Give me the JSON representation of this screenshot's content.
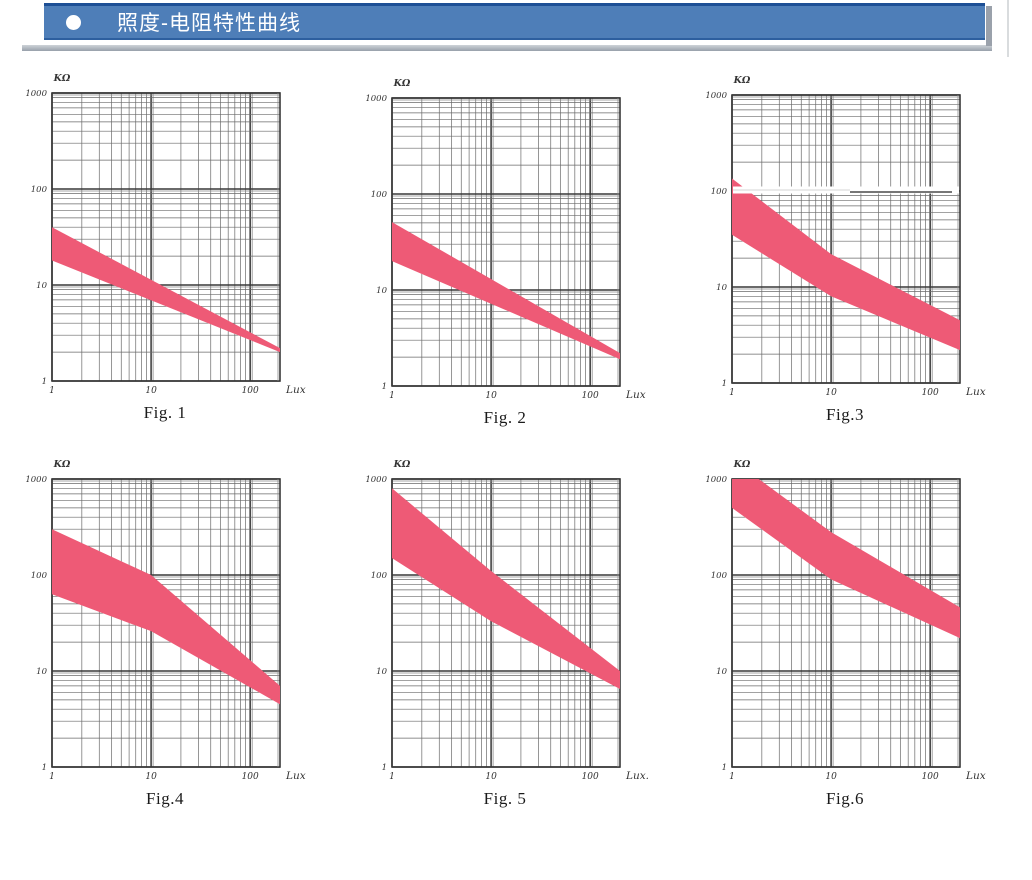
{
  "header": {
    "title": "照度-电阻特性曲线"
  },
  "colors": {
    "header_blue": "#4e7eb8",
    "header_border_top": "#1d4f95",
    "header_border_bottom": "#2d5f9f",
    "header_shadow": "#99a1ab",
    "band_pink": "#ee5a76",
    "grid_major": "#383838",
    "grid_minor": "#6a6a6a",
    "grid_echo": "#8a8a8a",
    "tick_text": "#333333"
  },
  "axes": {
    "scale": "log-log",
    "x_range": [
      1,
      200
    ],
    "y_range": [
      1,
      1000
    ],
    "x_ticks": [
      "1",
      "10",
      "100"
    ],
    "y_ticks": [
      "1000",
      "100",
      "10",
      "1"
    ],
    "y_unit": "KΩ",
    "x_unit": "Lux"
  },
  "chart_data": [
    {
      "id": "fig1",
      "type": "area",
      "caption": "Fig. 1",
      "y_unit": "KΩ",
      "x_unit": "Lux",
      "band": {
        "x": [
          1,
          200
        ],
        "upper": [
          40,
          2.2
        ],
        "lower": [
          18,
          2.0
        ]
      }
    },
    {
      "id": "fig2",
      "type": "area",
      "caption": "Fig. 2",
      "y_unit": "KΩ",
      "x_unit": "Lux",
      "band": {
        "x": [
          1,
          200
        ],
        "upper": [
          51,
          2.2
        ],
        "lower": [
          20,
          1.9
        ]
      }
    },
    {
      "id": "fig3",
      "type": "area",
      "caption": "Fig.3",
      "y_unit": "KΩ",
      "x_unit": "Lux",
      "white_gap_at": 100,
      "band": {
        "x": [
          1,
          10,
          200
        ],
        "upper": [
          135,
          22,
          4.5
        ],
        "lower": [
          35,
          8,
          2.2
        ]
      }
    },
    {
      "id": "fig4",
      "type": "area",
      "caption": "Fig.4",
      "y_unit": "KΩ",
      "x_unit": "Lux",
      "band": {
        "x": [
          1,
          10,
          200
        ],
        "upper": [
          300,
          100,
          7
        ],
        "lower": [
          63,
          26,
          4.5
        ]
      }
    },
    {
      "id": "fig5",
      "type": "area",
      "caption": "Fig. 5",
      "y_unit": "KΩ",
      "x_unit": "Lux.",
      "band": {
        "x": [
          1,
          10,
          200
        ],
        "upper": [
          800,
          110,
          10
        ],
        "lower": [
          150,
          33,
          6.5
        ]
      }
    },
    {
      "id": "fig6",
      "type": "area",
      "caption": "Fig.6",
      "y_unit": "KΩ",
      "x_unit": "Lux",
      "band": {
        "x": [
          1,
          10,
          200
        ],
        "upper": [
          1600,
          280,
          46
        ],
        "lower": [
          500,
          90,
          22
        ]
      }
    }
  ]
}
